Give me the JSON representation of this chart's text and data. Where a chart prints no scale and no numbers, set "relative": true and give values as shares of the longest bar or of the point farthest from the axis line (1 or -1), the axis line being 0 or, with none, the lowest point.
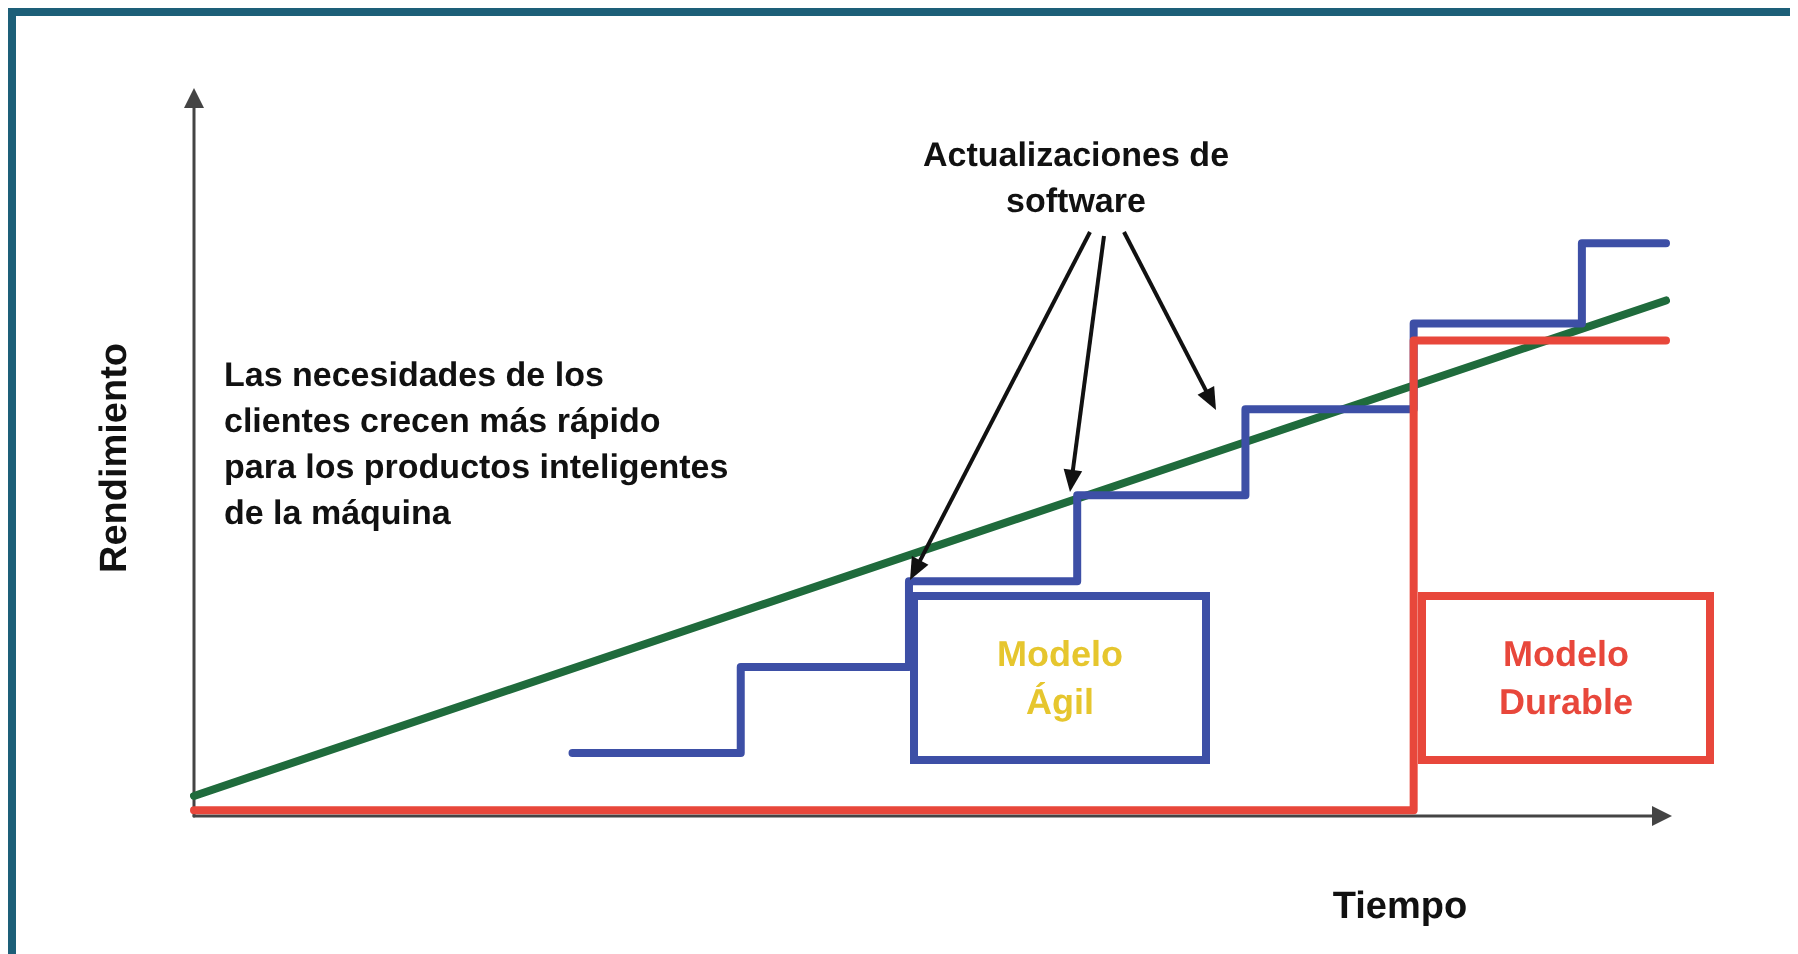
{
  "chart_data": {
    "type": "line",
    "relative": true,
    "xlabel": "Tiempo",
    "ylabel": "Rendimiento",
    "categories": [
      null,
      null,
      null,
      null,
      null,
      null,
      null,
      null,
      null,
      null,
      null,
      null,
      null,
      null,
      null,
      null,
      null,
      null,
      null,
      null,
      null,
      null,
      null,
      null,
      null,
      null,
      null,
      null,
      null,
      null,
      null,
      null,
      null,
      null,
      null,
      null
    ],
    "series": [
      {
        "color": "#1f6b3c",
        "values": [
          0.035,
          null,
          null,
          null,
          null,
          null,
          null,
          null,
          null,
          null,
          null,
          null,
          null,
          null,
          null,
          null,
          null,
          null,
          null,
          null,
          null,
          null,
          null,
          null,
          null,
          null,
          null,
          null,
          null,
          null,
          null,
          null,
          null,
          null,
          null,
          0.9
        ]
      },
      {
        "type": "step",
        "color": "#3d4fa6",
        "values": [
          null,
          null,
          null,
          null,
          null,
          null,
          null,
          null,
          null,
          0.11,
          null,
          null,
          null,
          0.26,
          null,
          null,
          null,
          0.41,
          null,
          null,
          null,
          0.56,
          null,
          null,
          null,
          0.71,
          null,
          null,
          null,
          0.86,
          null,
          null,
          null,
          1,
          null,
          1
        ]
      },
      {
        "type": "step",
        "color": "#e8473b",
        "values": [
          0.01,
          null,
          null,
          null,
          null,
          null,
          null,
          null,
          null,
          null,
          null,
          null,
          null,
          null,
          null,
          null,
          null,
          null,
          null,
          null,
          null,
          null,
          null,
          null,
          null,
          null,
          null,
          null,
          null,
          0.83,
          null,
          null,
          null,
          null,
          null,
          0.83
        ]
      }
    ],
    "annotations": [
      "Las necesidades de los clientes crecen más rápido para los productos inteligentes de la máquina",
      "Actualizaciones de software",
      "Modelo Ágil",
      "Modelo Durable"
    ],
    "grid": false,
    "marker": "none",
    "line_style": "solid"
  }
}
